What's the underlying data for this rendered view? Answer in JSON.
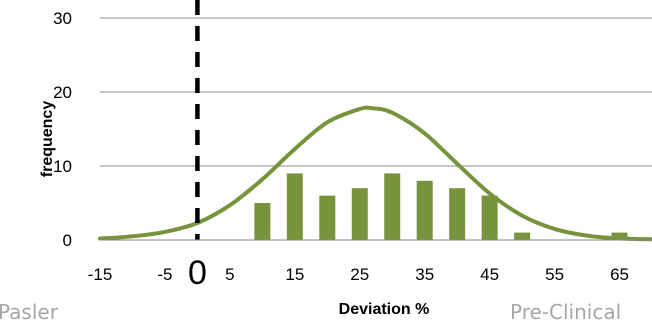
{
  "chart_data": {
    "type": "bar",
    "xlabel": "Deviation %",
    "ylabel": "frequency",
    "ylim": [
      0,
      30
    ],
    "xlim": [
      -15,
      70
    ],
    "yticks": [
      0,
      10,
      20,
      30
    ],
    "xticks": [
      -15,
      -5,
      5,
      15,
      25,
      35,
      45,
      55,
      65
    ],
    "grid": "horizontal",
    "bar_series": {
      "x": [
        10,
        15,
        20,
        25,
        30,
        35,
        40,
        45,
        50,
        55,
        60,
        65
      ],
      "values": [
        5,
        9,
        6,
        7,
        9,
        8,
        7,
        6,
        1,
        0,
        0,
        1
      ],
      "color": "#77933c"
    },
    "curve_series": {
      "type": "line",
      "color": "#77933c",
      "x": [
        -15,
        -10,
        -5,
        0,
        5,
        10,
        15,
        20,
        25,
        27,
        30,
        35,
        40,
        45,
        50,
        55,
        60,
        65,
        70
      ],
      "values": [
        0.2,
        0.5,
        1.1,
        2.3,
        4.7,
        8.2,
        12.3,
        15.9,
        17.7,
        17.8,
        17.2,
        14.4,
        10.3,
        6.3,
        3.3,
        1.5,
        0.6,
        0.2,
        0.1
      ]
    },
    "reference_line": {
      "x": 0,
      "label": "0",
      "style": "dashed",
      "color": "#000000"
    }
  },
  "footer": {
    "left": "Pasler",
    "right": "Pre-Clinical"
  }
}
